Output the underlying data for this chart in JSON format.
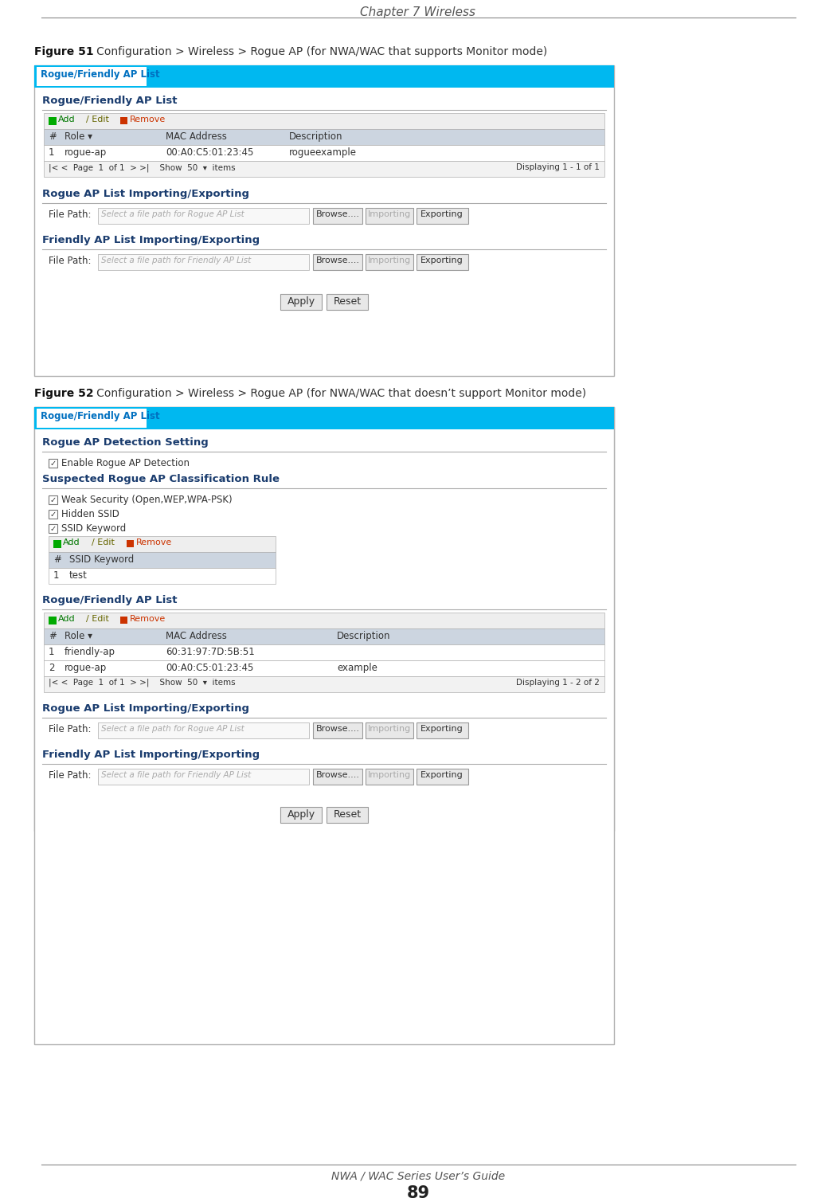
{
  "page_title": "Chapter 7 Wireless",
  "footer_title": "NWA / WAC Series User’s Guide",
  "footer_page": "89",
  "fig51_label": "Figure 51",
  "fig51_caption": "   Configuration > Wireless > Rogue AP (for NWA/WAC that supports Monitor mode)",
  "fig52_label": "Figure 52",
  "fig52_caption": "   Configuration > Wireless > Rogue AP (for NWA/WAC that doesn’t support Monitor mode)",
  "tab_label": "Rogue/Friendly AP List",
  "bg_color": "#ffffff",
  "tab_bg": "#00b8f0",
  "panel_border": "#b0b0b0",
  "header_row_bg": "#ccd5e0",
  "blue_link": "#0070c0",
  "button_bg": "#e8e8e8",
  "button_border": "#999999",
  "input_bg": "#f8f8f8",
  "input_border": "#aaaaaa",
  "divider_color": "#cccccc",
  "text_color": "#333333",
  "bold_blue": "#1a3c6e",
  "section_line_color": "#aaaaaa",
  "toolbar_bg": "#eeeeee",
  "pagination_bg": "#f2f2f2"
}
